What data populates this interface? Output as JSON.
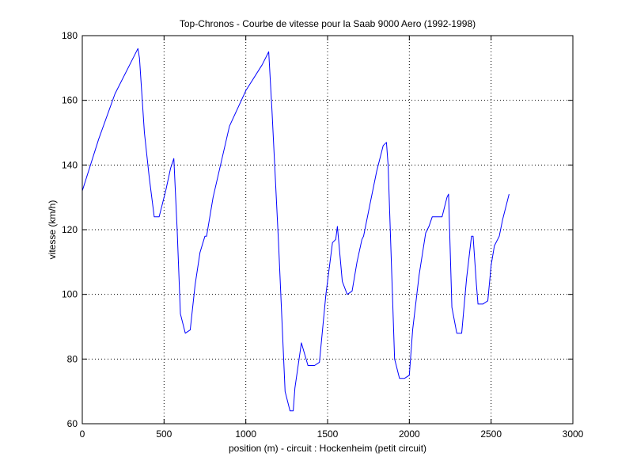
{
  "chart_data": {
    "type": "line",
    "title": "Top-Chronos - Courbe de vitesse pour la Saab 9000 Aero (1992-1998)",
    "xlabel": "position (m) - circuit : Hockenheim (petit circuit)",
    "ylabel": "vitesse (km/h)",
    "xlim": [
      0,
      3000
    ],
    "ylim": [
      60,
      180
    ],
    "xticks": [
      0,
      500,
      1000,
      1500,
      2000,
      2500,
      3000
    ],
    "yticks": [
      60,
      80,
      100,
      120,
      140,
      160,
      180
    ],
    "grid": true,
    "line_color": "#0000ff",
    "series": [
      {
        "x": [
          0,
          100,
          200,
          300,
          340,
          350,
          380,
          410,
          440,
          470,
          510,
          540,
          560,
          580,
          600,
          630,
          660,
          690,
          720,
          750,
          760,
          800,
          900,
          1000,
          1100,
          1140,
          1160,
          1200,
          1240,
          1270,
          1290,
          1300,
          1340,
          1380,
          1420,
          1450,
          1490,
          1530,
          1550,
          1560,
          1590,
          1620,
          1650,
          1680,
          1710,
          1720,
          1760,
          1800,
          1840,
          1860,
          1870,
          1910,
          1940,
          1970,
          2000,
          2020,
          2060,
          2100,
          2120,
          2140,
          2160,
          2200,
          2230,
          2240,
          2260,
          2290,
          2320,
          2350,
          2380,
          2390,
          2410,
          2420,
          2450,
          2480,
          2500,
          2520,
          2550,
          2570,
          2610
        ],
        "y": [
          132,
          148,
          162,
          172,
          176,
          173,
          150,
          136,
          124,
          124,
          132,
          139,
          142,
          120,
          94,
          88,
          89,
          103,
          113,
          118,
          118,
          130,
          152,
          163,
          171,
          175,
          157,
          116,
          70,
          64,
          64,
          71,
          85,
          78,
          78,
          79,
          100,
          116,
          117,
          121,
          104,
          100,
          101,
          110,
          117,
          118,
          128,
          138,
          146,
          147,
          140,
          80,
          74,
          74,
          75,
          89,
          106,
          119,
          121,
          124,
          124,
          124,
          130,
          131,
          96,
          88,
          88,
          105,
          118,
          118,
          103,
          97,
          97,
          98,
          109,
          115,
          118,
          123,
          131
        ]
      }
    ]
  }
}
